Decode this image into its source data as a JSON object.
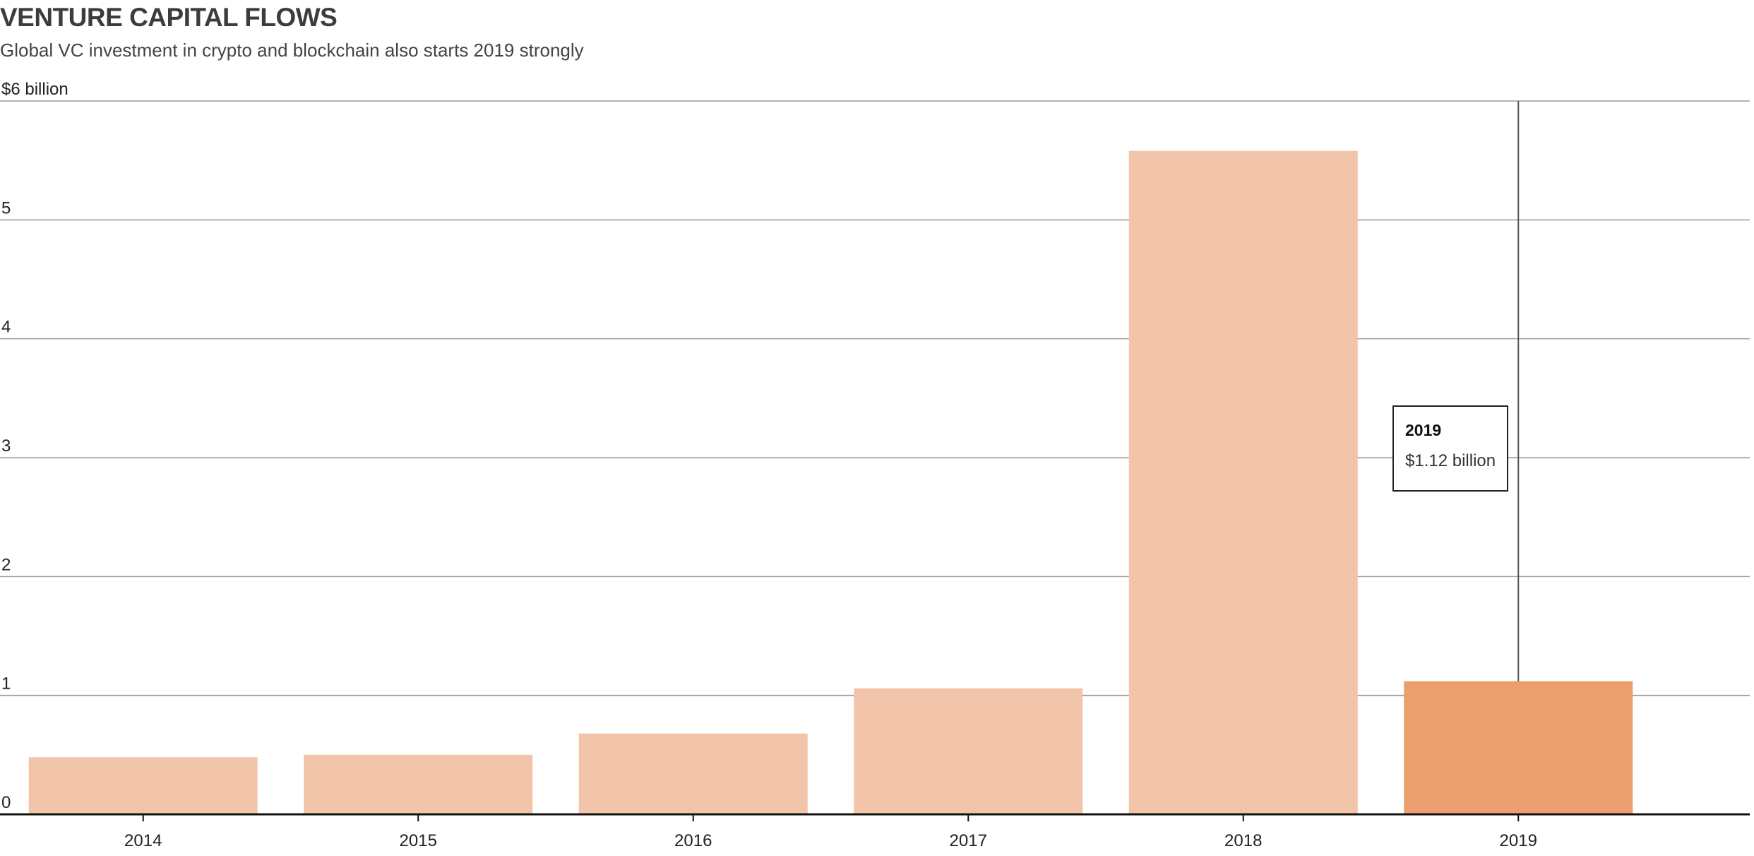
{
  "header": {
    "title": "VENTURE CAPITAL FLOWS",
    "subtitle": "Global VC investment in crypto and blockchain also starts 2019 strongly"
  },
  "tooltip": {
    "title": "2019",
    "value": "$1.12  billion"
  },
  "chart_data": {
    "type": "bar",
    "title": "VENTURE CAPITAL FLOWS",
    "subtitle": "Global VC investment in crypto and blockchain also starts 2019 strongly",
    "ylabel": "$6  billion",
    "xlabel": "",
    "categories": [
      "2014",
      "2015",
      "2016",
      "2017",
      "2018",
      "2019"
    ],
    "values": [
      0.48,
      0.5,
      0.68,
      1.06,
      5.58,
      1.12
    ],
    "highlight_index": 5,
    "ylim": [
      0,
      6
    ],
    "yticks": [
      0,
      1,
      2,
      3,
      4,
      5,
      6
    ],
    "ytick_labels": [
      "0",
      "1",
      "2",
      "3",
      "4",
      "5",
      "$6  billion"
    ],
    "grid": true,
    "legend": "none",
    "colors": {
      "bar": "#f2c4a9",
      "highlight": "#eb9f6f",
      "grid": "#999999",
      "axis": "#111111",
      "cursor": "#555555"
    }
  }
}
